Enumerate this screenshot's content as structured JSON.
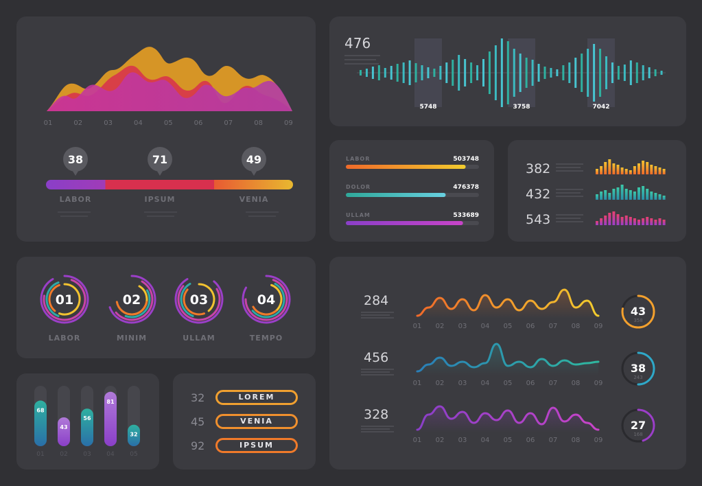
{
  "colors": {
    "background": "#303034",
    "panel": "#3b3b40",
    "purple": "#9b3fc8",
    "magenta": "#c8349c",
    "red": "#d8304e",
    "orange": "#f07a2a",
    "yellow": "#f2c230",
    "teal": "#2fa8a8",
    "cyan": "#5ec8d8"
  },
  "wave_panel": {
    "x_labels": [
      "01",
      "02",
      "03",
      "04",
      "05",
      "06",
      "07",
      "08",
      "09"
    ],
    "markers": [
      {
        "value": "38",
        "label": "LABOR"
      },
      {
        "value": "71",
        "label": "IPSUM"
      },
      {
        "value": "49",
        "label": "VENIA"
      }
    ]
  },
  "bar_wave_panel": {
    "value": "476",
    "labels": [
      "5748",
      "3758",
      "7042"
    ]
  },
  "progress_panel": {
    "rows": [
      {
        "label": "LABOR",
        "value": "503748",
        "fraction": 0.9
      },
      {
        "label": "DOLOR",
        "value": "476378",
        "fraction": 0.75
      },
      {
        "label": "ULLAM",
        "value": "533689",
        "fraction": 0.88
      }
    ]
  },
  "mini_bars_panel": {
    "rows": [
      {
        "value": "382",
        "color": "orange"
      },
      {
        "value": "432",
        "color": "teal"
      },
      {
        "value": "543",
        "color": "magenta"
      }
    ]
  },
  "rings_panel": {
    "rings": [
      {
        "number": "01",
        "label": "LABOR"
      },
      {
        "number": "02",
        "label": "MINIM"
      },
      {
        "number": "03",
        "label": "ULLAM"
      },
      {
        "number": "04",
        "label": "TEMPO"
      }
    ]
  },
  "vbars_panel": {
    "bars": [
      {
        "value": "68",
        "label": "01",
        "color": "teal"
      },
      {
        "value": "43",
        "label": "02",
        "color": "purple"
      },
      {
        "value": "56",
        "label": "03",
        "color": "teal"
      },
      {
        "value": "81",
        "label": "04",
        "color": "purple"
      },
      {
        "value": "32",
        "label": "05",
        "color": "teal"
      }
    ]
  },
  "buttons_panel": {
    "items": [
      {
        "number": "32",
        "label": "LOREM"
      },
      {
        "number": "45",
        "label": "VENIA"
      },
      {
        "number": "92",
        "label": "IPSUM"
      }
    ]
  },
  "lines_panel": {
    "x_labels": [
      "01",
      "02",
      "03",
      "04",
      "05",
      "06",
      "07",
      "08",
      "09"
    ],
    "rows": [
      {
        "value": "284",
        "ring_value": "43",
        "ring_sub": "358",
        "color": "orange"
      },
      {
        "value": "456",
        "ring_value": "38",
        "ring_sub": "243",
        "color": "teal"
      },
      {
        "value": "328",
        "ring_value": "27",
        "ring_sub": "168",
        "color": "purple"
      }
    ]
  }
}
